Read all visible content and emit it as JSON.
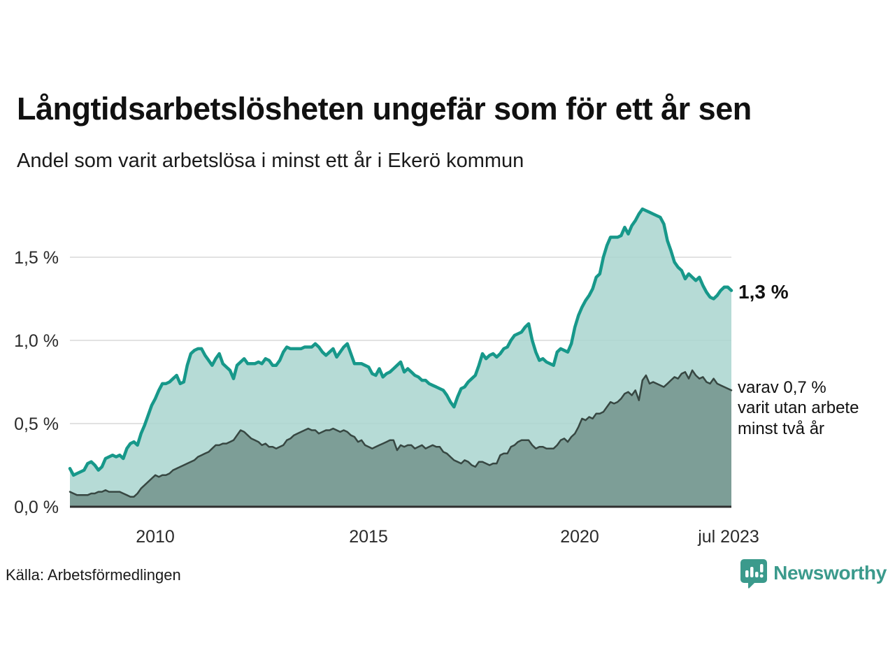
{
  "title": "Långtidsarbetslösheten ungefär som för ett år sen",
  "subtitle": "Andel som varit arbetslösa i minst ett år i Ekerö kommun",
  "source": "Källa: Arbetsförmedlingen",
  "branding": {
    "name": "Newsworthy",
    "color": "#3b9a8c"
  },
  "annotations": {
    "latest_value": "1,3 %",
    "secondary_line1": "varav 0,7 %",
    "secondary_line2": "varit utan arbete",
    "secondary_line3": "minst två år"
  },
  "chart_data": {
    "type": "area",
    "x_start": "2008-01",
    "x_end": "2023-07",
    "x_tick_labels": [
      "2010",
      "2015",
      "2020",
      "jul 2023"
    ],
    "y_tick_labels": [
      "0,0 %",
      "0,5 %",
      "1,0 %",
      "1,5 %"
    ],
    "ylabel": "",
    "xlabel": "",
    "ylim": [
      0,
      1.9
    ],
    "grid": "horizontal",
    "legend_position": "right-annotations",
    "colors": {
      "series1_stroke": "#17988a",
      "series1_fill": "#a9d5cf",
      "series2_stroke": "#374742",
      "series2_fill": "#7d9e97",
      "gridline": "#e2e2e2",
      "axis": "#2f2f2f"
    },
    "series": [
      {
        "name": "Andel arbetslösa minst ett år",
        "end_value_pct": 1.3,
        "values": [
          0.23,
          0.19,
          0.2,
          0.21,
          0.22,
          0.26,
          0.27,
          0.25,
          0.22,
          0.24,
          0.29,
          0.3,
          0.31,
          0.3,
          0.31,
          0.29,
          0.35,
          0.38,
          0.39,
          0.37,
          0.44,
          0.49,
          0.55,
          0.61,
          0.65,
          0.7,
          0.74,
          0.74,
          0.75,
          0.77,
          0.79,
          0.74,
          0.75,
          0.85,
          0.92,
          0.94,
          0.95,
          0.95,
          0.91,
          0.88,
          0.85,
          0.89,
          0.92,
          0.86,
          0.84,
          0.82,
          0.77,
          0.85,
          0.87,
          0.89,
          0.86,
          0.86,
          0.86,
          0.87,
          0.86,
          0.89,
          0.88,
          0.85,
          0.85,
          0.88,
          0.93,
          0.96,
          0.95,
          0.95,
          0.95,
          0.95,
          0.96,
          0.96,
          0.96,
          0.98,
          0.96,
          0.93,
          0.91,
          0.93,
          0.95,
          0.9,
          0.93,
          0.96,
          0.98,
          0.92,
          0.86,
          0.86,
          0.86,
          0.85,
          0.84,
          0.8,
          0.79,
          0.83,
          0.78,
          0.8,
          0.81,
          0.83,
          0.85,
          0.87,
          0.81,
          0.83,
          0.81,
          0.79,
          0.78,
          0.76,
          0.76,
          0.74,
          0.73,
          0.72,
          0.71,
          0.7,
          0.67,
          0.63,
          0.6,
          0.66,
          0.71,
          0.72,
          0.75,
          0.77,
          0.79,
          0.85,
          0.92,
          0.89,
          0.91,
          0.92,
          0.9,
          0.92,
          0.95,
          0.96,
          1.0,
          1.03,
          1.04,
          1.05,
          1.08,
          1.1,
          1.0,
          0.93,
          0.88,
          0.89,
          0.87,
          0.86,
          0.85,
          0.93,
          0.95,
          0.94,
          0.93,
          0.98,
          1.08,
          1.15,
          1.2,
          1.24,
          1.27,
          1.31,
          1.38,
          1.4,
          1.5,
          1.57,
          1.62,
          1.62,
          1.62,
          1.63,
          1.68,
          1.64,
          1.69,
          1.72,
          1.76,
          1.79,
          1.78,
          1.77,
          1.76,
          1.75,
          1.74,
          1.7,
          1.6,
          1.54,
          1.47,
          1.44,
          1.42,
          1.37,
          1.4,
          1.38,
          1.36,
          1.38,
          1.33,
          1.29,
          1.26,
          1.25,
          1.27,
          1.3,
          1.32,
          1.32,
          1.3
        ]
      },
      {
        "name": "varav utan arbete minst två år",
        "end_value_pct": 0.7,
        "values": [
          0.09,
          0.08,
          0.07,
          0.07,
          0.07,
          0.07,
          0.08,
          0.08,
          0.09,
          0.09,
          0.1,
          0.09,
          0.09,
          0.09,
          0.09,
          0.08,
          0.07,
          0.06,
          0.06,
          0.08,
          0.11,
          0.13,
          0.15,
          0.17,
          0.19,
          0.18,
          0.19,
          0.19,
          0.2,
          0.22,
          0.23,
          0.24,
          0.25,
          0.26,
          0.27,
          0.28,
          0.3,
          0.31,
          0.32,
          0.33,
          0.35,
          0.37,
          0.37,
          0.38,
          0.38,
          0.39,
          0.4,
          0.43,
          0.46,
          0.45,
          0.43,
          0.41,
          0.4,
          0.39,
          0.37,
          0.38,
          0.36,
          0.36,
          0.35,
          0.36,
          0.37,
          0.4,
          0.41,
          0.43,
          0.44,
          0.45,
          0.46,
          0.47,
          0.46,
          0.46,
          0.44,
          0.45,
          0.46,
          0.46,
          0.47,
          0.46,
          0.45,
          0.46,
          0.45,
          0.43,
          0.42,
          0.39,
          0.4,
          0.37,
          0.36,
          0.35,
          0.36,
          0.37,
          0.38,
          0.39,
          0.4,
          0.4,
          0.34,
          0.37,
          0.36,
          0.37,
          0.37,
          0.35,
          0.36,
          0.37,
          0.35,
          0.36,
          0.37,
          0.36,
          0.36,
          0.33,
          0.32,
          0.3,
          0.28,
          0.27,
          0.26,
          0.28,
          0.27,
          0.25,
          0.24,
          0.27,
          0.27,
          0.26,
          0.25,
          0.26,
          0.26,
          0.31,
          0.32,
          0.32,
          0.36,
          0.37,
          0.39,
          0.4,
          0.4,
          0.4,
          0.37,
          0.35,
          0.36,
          0.36,
          0.35,
          0.35,
          0.35,
          0.37,
          0.4,
          0.41,
          0.39,
          0.42,
          0.44,
          0.48,
          0.53,
          0.52,
          0.54,
          0.53,
          0.56,
          0.56,
          0.57,
          0.6,
          0.63,
          0.62,
          0.63,
          0.65,
          0.68,
          0.69,
          0.67,
          0.7,
          0.64,
          0.76,
          0.79,
          0.74,
          0.75,
          0.74,
          0.73,
          0.72,
          0.74,
          0.76,
          0.78,
          0.77,
          0.8,
          0.81,
          0.77,
          0.82,
          0.79,
          0.77,
          0.78,
          0.75,
          0.74,
          0.77,
          0.74,
          0.73,
          0.72,
          0.71,
          0.7
        ]
      }
    ]
  }
}
